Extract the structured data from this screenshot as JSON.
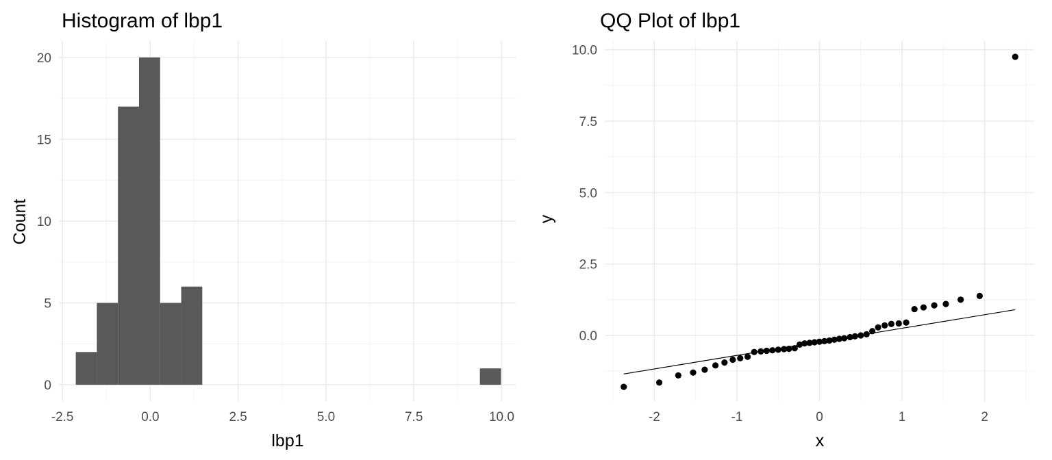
{
  "chart_data": [
    {
      "type": "bar",
      "title": "Histogram of lbp1",
      "xlabel": "lbp1",
      "ylabel": "Count",
      "xlim": [
        -2.6,
        10.4
      ],
      "ylim": [
        -1.0,
        21.0
      ],
      "x_ticks": [
        -2.5,
        0.0,
        2.5,
        5.0,
        7.5,
        10.0
      ],
      "x_tick_labels": [
        "-2.5",
        "0.0",
        "2.5",
        "5.0",
        "7.5",
        "10.0"
      ],
      "y_ticks": [
        0,
        5,
        10,
        15,
        20
      ],
      "y_tick_labels": [
        "0",
        "5",
        "10",
        "15",
        "20"
      ],
      "grid": true,
      "bins": [
        {
          "x0": -2.12,
          "x1": -1.52,
          "count": 2
        },
        {
          "x0": -1.52,
          "x1": -0.92,
          "count": 5
        },
        {
          "x0": -0.92,
          "x1": -0.32,
          "count": 17
        },
        {
          "x0": -0.32,
          "x1": 0.28,
          "count": 20
        },
        {
          "x0": 0.28,
          "x1": 0.88,
          "count": 5
        },
        {
          "x0": 0.88,
          "x1": 1.48,
          "count": 6
        },
        {
          "x0": 9.38,
          "x1": 9.98,
          "count": 1
        }
      ],
      "color": "#595959"
    },
    {
      "type": "scatter",
      "title": "QQ Plot of lbp1",
      "xlabel": "x",
      "ylabel": "y",
      "xlim": [
        -2.6,
        2.6
      ],
      "ylim": [
        -2.3,
        10.3
      ],
      "x_ticks": [
        -2,
        -1,
        0,
        1,
        2
      ],
      "x_tick_labels": [
        "-2",
        "-1",
        "0",
        "1",
        "2"
      ],
      "y_ticks": [
        0.0,
        2.5,
        5.0,
        7.5,
        10.0
      ],
      "y_tick_labels": [
        "0.0",
        "2.5",
        "5.0",
        "7.5",
        "10.0"
      ],
      "grid": true,
      "x": [
        -2.37,
        -1.94,
        -1.71,
        -1.53,
        -1.39,
        -1.26,
        -1.15,
        -1.05,
        -0.96,
        -0.87,
        -0.79,
        -0.71,
        -0.64,
        -0.57,
        -0.5,
        -0.43,
        -0.37,
        -0.3,
        -0.24,
        -0.18,
        -0.12,
        -0.06,
        0.0,
        0.06,
        0.12,
        0.18,
        0.24,
        0.3,
        0.37,
        0.43,
        0.5,
        0.57,
        0.64,
        0.71,
        0.79,
        0.87,
        0.96,
        1.05,
        1.15,
        1.26,
        1.39,
        1.53,
        1.71,
        1.94,
        2.37
      ],
      "y": [
        -1.8,
        -1.65,
        -1.4,
        -1.3,
        -1.2,
        -1.05,
        -0.95,
        -0.85,
        -0.8,
        -0.75,
        -0.58,
        -0.56,
        -0.54,
        -0.52,
        -0.5,
        -0.48,
        -0.47,
        -0.45,
        -0.32,
        -0.28,
        -0.26,
        -0.24,
        -0.22,
        -0.2,
        -0.18,
        -0.15,
        -0.12,
        -0.1,
        -0.06,
        -0.03,
        0.0,
        0.04,
        0.15,
        0.28,
        0.35,
        0.4,
        0.42,
        0.45,
        0.92,
        0.98,
        1.05,
        1.1,
        1.25,
        1.38,
        9.75
      ],
      "reference_line": {
        "x": [
          -2.37,
          2.37
        ],
        "y": [
          -1.35,
          0.9
        ]
      },
      "color": "#000000"
    }
  ]
}
